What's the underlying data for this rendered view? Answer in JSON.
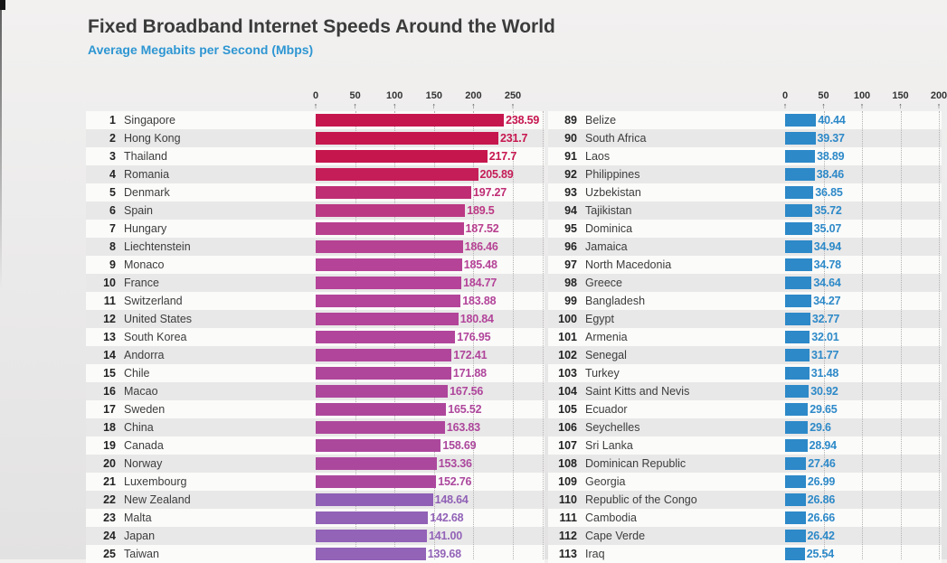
{
  "header": {
    "title": "Fixed Broadband Internet Speeds Around the World",
    "subtitle": "Average Megabits per Second (Mbps)"
  },
  "colors": {
    "title_text": "#3b3b3b",
    "subtitle_text": "#2e96d2",
    "row_stripe_light": "#fbfbfa",
    "row_stripe_dark": "#e9e8e8",
    "band_red": "#c6164e",
    "band_magenta": "#b2449a",
    "band_purple": "#9263b7",
    "band_blue": "#2d89c8"
  },
  "chart_data": {
    "type": "bar",
    "orientation": "horizontal",
    "title": "Fixed Broadband Internet Speeds Around the World",
    "subtitle": "Average Megabits per Second (Mbps)",
    "unit": "Mbps",
    "grid": "dotted-vertical",
    "axes": {
      "left": {
        "ticks": [
          0,
          50,
          100,
          150,
          200,
          250
        ],
        "xlim": [
          0,
          250
        ]
      },
      "right": {
        "ticks": [
          0,
          50,
          100,
          150,
          200
        ],
        "xlim": [
          0,
          200
        ]
      }
    },
    "left": [
      {
        "rank": "1",
        "country": "Singapore",
        "value": 238.59,
        "label": "238.59",
        "color": "#c6164e"
      },
      {
        "rank": "2",
        "country": "Hong Kong",
        "value": 231.7,
        "label": "231.7",
        "color": "#c6164e"
      },
      {
        "rank": "3",
        "country": "Thailand",
        "value": 217.7,
        "label": "217.7",
        "color": "#c6164e"
      },
      {
        "rank": "4",
        "country": "Romania",
        "value": 205.89,
        "label": "205.89",
        "color": "#c51d58"
      },
      {
        "rank": "5",
        "country": "Denmark",
        "value": 197.27,
        "label": "197.27",
        "color": "#bf2e74"
      },
      {
        "rank": "6",
        "country": "Spain",
        "value": 189.5,
        "label": "189.5",
        "color": "#bb3884"
      },
      {
        "rank": "7",
        "country": "Hungary",
        "value": 187.52,
        "label": "187.52",
        "color": "#b83f8e"
      },
      {
        "rank": "8",
        "country": "Liechtenstein",
        "value": 186.46,
        "label": "186.46",
        "color": "#b64294"
      },
      {
        "rank": "9",
        "country": "Monaco",
        "value": 185.48,
        "label": "185.48",
        "color": "#b54397"
      },
      {
        "rank": "10",
        "country": "France",
        "value": 184.77,
        "label": "184.77",
        "color": "#b44399"
      },
      {
        "rank": "11",
        "country": "Switzerland",
        "value": 183.88,
        "label": "183.88",
        "color": "#b3449a"
      },
      {
        "rank": "12",
        "country": "United States",
        "value": 180.84,
        "label": "180.84",
        "color": "#b2449a"
      },
      {
        "rank": "13",
        "country": "South Korea",
        "value": 176.95,
        "label": "176.95",
        "color": "#b1459b"
      },
      {
        "rank": "14",
        "country": "Andorra",
        "value": 172.41,
        "label": "172.41",
        "color": "#b0459b"
      },
      {
        "rank": "15",
        "country": "Chile",
        "value": 171.88,
        "label": "171.88",
        "color": "#af469b"
      },
      {
        "rank": "16",
        "country": "Macao",
        "value": 167.56,
        "label": "167.56",
        "color": "#ae469c"
      },
      {
        "rank": "17",
        "country": "Sweden",
        "value": 165.52,
        "label": "165.52",
        "color": "#ae479c"
      },
      {
        "rank": "18",
        "country": "China",
        "value": 163.83,
        "label": "163.83",
        "color": "#ad479c"
      },
      {
        "rank": "19",
        "country": "Canada",
        "value": 158.69,
        "label": "158.69",
        "color": "#ac489c"
      },
      {
        "rank": "20",
        "country": "Norway",
        "value": 153.36,
        "label": "153.36",
        "color": "#ab489d"
      },
      {
        "rank": "21",
        "country": "Luxembourg",
        "value": 152.76,
        "label": "152.76",
        "color": "#ab489d"
      },
      {
        "rank": "22",
        "country": "New Zealand",
        "value": 148.64,
        "label": "148.64",
        "color": "#8f60b5"
      },
      {
        "rank": "23",
        "country": "Malta",
        "value": 142.68,
        "label": "142.68",
        "color": "#9162b6"
      },
      {
        "rank": "24",
        "country": "Japan",
        "value": 141.0,
        "label": "141.00",
        "color": "#9263b7"
      },
      {
        "rank": "25",
        "country": "Taiwan",
        "value": 139.68,
        "label": "139.68",
        "color": "#9263b7"
      }
    ],
    "right": [
      {
        "rank": "89",
        "country": "Belize",
        "value": 40.44,
        "label": "40.44",
        "color": "#2d89c8"
      },
      {
        "rank": "90",
        "country": "South Africa",
        "value": 39.37,
        "label": "39.37",
        "color": "#2d89c8"
      },
      {
        "rank": "91",
        "country": "Laos",
        "value": 38.89,
        "label": "38.89",
        "color": "#2d89c8"
      },
      {
        "rank": "92",
        "country": "Philippines",
        "value": 38.46,
        "label": "38.46",
        "color": "#2d89c8"
      },
      {
        "rank": "93",
        "country": "Uzbekistan",
        "value": 36.85,
        "label": "36.85",
        "color": "#2d89c8"
      },
      {
        "rank": "94",
        "country": "Tajikistan",
        "value": 35.72,
        "label": "35.72",
        "color": "#2d89c8"
      },
      {
        "rank": "95",
        "country": "Dominica",
        "value": 35.07,
        "label": "35.07",
        "color": "#2d89c8"
      },
      {
        "rank": "96",
        "country": "Jamaica",
        "value": 34.94,
        "label": "34.94",
        "color": "#2d89c8"
      },
      {
        "rank": "97",
        "country": "North Macedonia",
        "value": 34.78,
        "label": "34.78",
        "color": "#2d89c8"
      },
      {
        "rank": "98",
        "country": "Greece",
        "value": 34.64,
        "label": "34.64",
        "color": "#2d89c8"
      },
      {
        "rank": "99",
        "country": "Bangladesh",
        "value": 34.27,
        "label": "34.27",
        "color": "#2d89c8"
      },
      {
        "rank": "100",
        "country": "Egypt",
        "value": 32.77,
        "label": "32.77",
        "color": "#2d89c8"
      },
      {
        "rank": "101",
        "country": "Armenia",
        "value": 32.01,
        "label": "32.01",
        "color": "#2d89c8"
      },
      {
        "rank": "102",
        "country": "Senegal",
        "value": 31.77,
        "label": "31.77",
        "color": "#2d89c8"
      },
      {
        "rank": "103",
        "country": "Turkey",
        "value": 31.48,
        "label": "31.48",
        "color": "#2d89c8"
      },
      {
        "rank": "104",
        "country": "Saint Kitts and Nevis",
        "value": 30.92,
        "label": "30.92",
        "color": "#2d89c8"
      },
      {
        "rank": "105",
        "country": "Ecuador",
        "value": 29.65,
        "label": "29.65",
        "color": "#2d89c8"
      },
      {
        "rank": "106",
        "country": "Seychelles",
        "value": 29.6,
        "label": "29.6",
        "color": "#2d89c8"
      },
      {
        "rank": "107",
        "country": "Sri Lanka",
        "value": 28.94,
        "label": "28.94",
        "color": "#2d89c8"
      },
      {
        "rank": "108",
        "country": "Dominican Republic",
        "value": 27.46,
        "label": "27.46",
        "color": "#2d89c8"
      },
      {
        "rank": "109",
        "country": "Georgia",
        "value": 26.99,
        "label": "26.99",
        "color": "#2d89c8"
      },
      {
        "rank": "110",
        "country": "Republic of the Congo",
        "value": 26.86,
        "label": "26.86",
        "color": "#2d89c8"
      },
      {
        "rank": "111",
        "country": "Cambodia",
        "value": 26.66,
        "label": "26.66",
        "color": "#2d89c8"
      },
      {
        "rank": "112",
        "country": "Cape Verde",
        "value": 26.42,
        "label": "26.42",
        "color": "#2d89c8"
      },
      {
        "rank": "113",
        "country": "Iraq",
        "value": 25.54,
        "label": "25.54",
        "color": "#2d89c8"
      }
    ]
  }
}
